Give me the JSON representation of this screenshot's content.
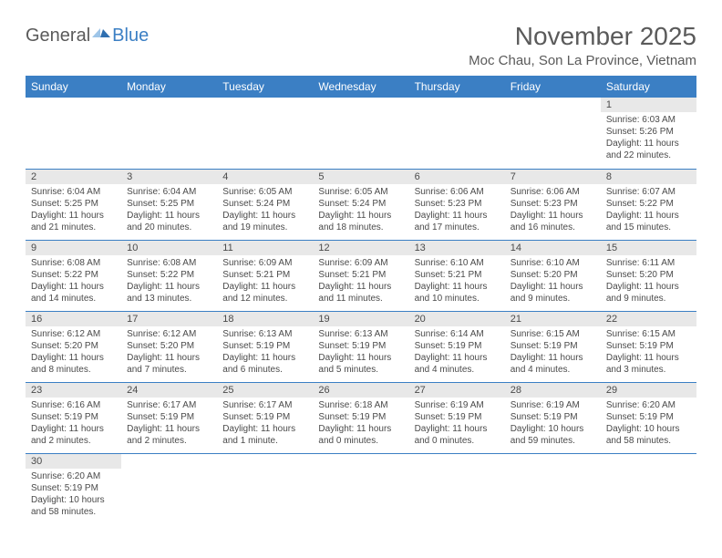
{
  "logo": {
    "general": "General",
    "blue": "Blue"
  },
  "title": "November 2025",
  "location": "Moc Chau, Son La Province, Vietnam",
  "colors": {
    "header_bg": "#3b7fc4",
    "header_text": "#ffffff",
    "daynum_bg": "#e8e8e8",
    "border": "#3b7fc4",
    "text": "#4a4a4a"
  },
  "weekdays": [
    "Sunday",
    "Monday",
    "Tuesday",
    "Wednesday",
    "Thursday",
    "Friday",
    "Saturday"
  ],
  "weeks": [
    [
      null,
      null,
      null,
      null,
      null,
      null,
      {
        "n": "1",
        "sr": "Sunrise: 6:03 AM",
        "ss": "Sunset: 5:26 PM",
        "d1": "Daylight: 11 hours",
        "d2": "and 22 minutes."
      }
    ],
    [
      {
        "n": "2",
        "sr": "Sunrise: 6:04 AM",
        "ss": "Sunset: 5:25 PM",
        "d1": "Daylight: 11 hours",
        "d2": "and 21 minutes."
      },
      {
        "n": "3",
        "sr": "Sunrise: 6:04 AM",
        "ss": "Sunset: 5:25 PM",
        "d1": "Daylight: 11 hours",
        "d2": "and 20 minutes."
      },
      {
        "n": "4",
        "sr": "Sunrise: 6:05 AM",
        "ss": "Sunset: 5:24 PM",
        "d1": "Daylight: 11 hours",
        "d2": "and 19 minutes."
      },
      {
        "n": "5",
        "sr": "Sunrise: 6:05 AM",
        "ss": "Sunset: 5:24 PM",
        "d1": "Daylight: 11 hours",
        "d2": "and 18 minutes."
      },
      {
        "n": "6",
        "sr": "Sunrise: 6:06 AM",
        "ss": "Sunset: 5:23 PM",
        "d1": "Daylight: 11 hours",
        "d2": "and 17 minutes."
      },
      {
        "n": "7",
        "sr": "Sunrise: 6:06 AM",
        "ss": "Sunset: 5:23 PM",
        "d1": "Daylight: 11 hours",
        "d2": "and 16 minutes."
      },
      {
        "n": "8",
        "sr": "Sunrise: 6:07 AM",
        "ss": "Sunset: 5:22 PM",
        "d1": "Daylight: 11 hours",
        "d2": "and 15 minutes."
      }
    ],
    [
      {
        "n": "9",
        "sr": "Sunrise: 6:08 AM",
        "ss": "Sunset: 5:22 PM",
        "d1": "Daylight: 11 hours",
        "d2": "and 14 minutes."
      },
      {
        "n": "10",
        "sr": "Sunrise: 6:08 AM",
        "ss": "Sunset: 5:22 PM",
        "d1": "Daylight: 11 hours",
        "d2": "and 13 minutes."
      },
      {
        "n": "11",
        "sr": "Sunrise: 6:09 AM",
        "ss": "Sunset: 5:21 PM",
        "d1": "Daylight: 11 hours",
        "d2": "and 12 minutes."
      },
      {
        "n": "12",
        "sr": "Sunrise: 6:09 AM",
        "ss": "Sunset: 5:21 PM",
        "d1": "Daylight: 11 hours",
        "d2": "and 11 minutes."
      },
      {
        "n": "13",
        "sr": "Sunrise: 6:10 AM",
        "ss": "Sunset: 5:21 PM",
        "d1": "Daylight: 11 hours",
        "d2": "and 10 minutes."
      },
      {
        "n": "14",
        "sr": "Sunrise: 6:10 AM",
        "ss": "Sunset: 5:20 PM",
        "d1": "Daylight: 11 hours",
        "d2": "and 9 minutes."
      },
      {
        "n": "15",
        "sr": "Sunrise: 6:11 AM",
        "ss": "Sunset: 5:20 PM",
        "d1": "Daylight: 11 hours",
        "d2": "and 9 minutes."
      }
    ],
    [
      {
        "n": "16",
        "sr": "Sunrise: 6:12 AM",
        "ss": "Sunset: 5:20 PM",
        "d1": "Daylight: 11 hours",
        "d2": "and 8 minutes."
      },
      {
        "n": "17",
        "sr": "Sunrise: 6:12 AM",
        "ss": "Sunset: 5:20 PM",
        "d1": "Daylight: 11 hours",
        "d2": "and 7 minutes."
      },
      {
        "n": "18",
        "sr": "Sunrise: 6:13 AM",
        "ss": "Sunset: 5:19 PM",
        "d1": "Daylight: 11 hours",
        "d2": "and 6 minutes."
      },
      {
        "n": "19",
        "sr": "Sunrise: 6:13 AM",
        "ss": "Sunset: 5:19 PM",
        "d1": "Daylight: 11 hours",
        "d2": "and 5 minutes."
      },
      {
        "n": "20",
        "sr": "Sunrise: 6:14 AM",
        "ss": "Sunset: 5:19 PM",
        "d1": "Daylight: 11 hours",
        "d2": "and 4 minutes."
      },
      {
        "n": "21",
        "sr": "Sunrise: 6:15 AM",
        "ss": "Sunset: 5:19 PM",
        "d1": "Daylight: 11 hours",
        "d2": "and 4 minutes."
      },
      {
        "n": "22",
        "sr": "Sunrise: 6:15 AM",
        "ss": "Sunset: 5:19 PM",
        "d1": "Daylight: 11 hours",
        "d2": "and 3 minutes."
      }
    ],
    [
      {
        "n": "23",
        "sr": "Sunrise: 6:16 AM",
        "ss": "Sunset: 5:19 PM",
        "d1": "Daylight: 11 hours",
        "d2": "and 2 minutes."
      },
      {
        "n": "24",
        "sr": "Sunrise: 6:17 AM",
        "ss": "Sunset: 5:19 PM",
        "d1": "Daylight: 11 hours",
        "d2": "and 2 minutes."
      },
      {
        "n": "25",
        "sr": "Sunrise: 6:17 AM",
        "ss": "Sunset: 5:19 PM",
        "d1": "Daylight: 11 hours",
        "d2": "and 1 minute."
      },
      {
        "n": "26",
        "sr": "Sunrise: 6:18 AM",
        "ss": "Sunset: 5:19 PM",
        "d1": "Daylight: 11 hours",
        "d2": "and 0 minutes."
      },
      {
        "n": "27",
        "sr": "Sunrise: 6:19 AM",
        "ss": "Sunset: 5:19 PM",
        "d1": "Daylight: 11 hours",
        "d2": "and 0 minutes."
      },
      {
        "n": "28",
        "sr": "Sunrise: 6:19 AM",
        "ss": "Sunset: 5:19 PM",
        "d1": "Daylight: 10 hours",
        "d2": "and 59 minutes."
      },
      {
        "n": "29",
        "sr": "Sunrise: 6:20 AM",
        "ss": "Sunset: 5:19 PM",
        "d1": "Daylight: 10 hours",
        "d2": "and 58 minutes."
      }
    ],
    [
      {
        "n": "30",
        "sr": "Sunrise: 6:20 AM",
        "ss": "Sunset: 5:19 PM",
        "d1": "Daylight: 10 hours",
        "d2": "and 58 minutes."
      },
      null,
      null,
      null,
      null,
      null,
      null
    ]
  ]
}
